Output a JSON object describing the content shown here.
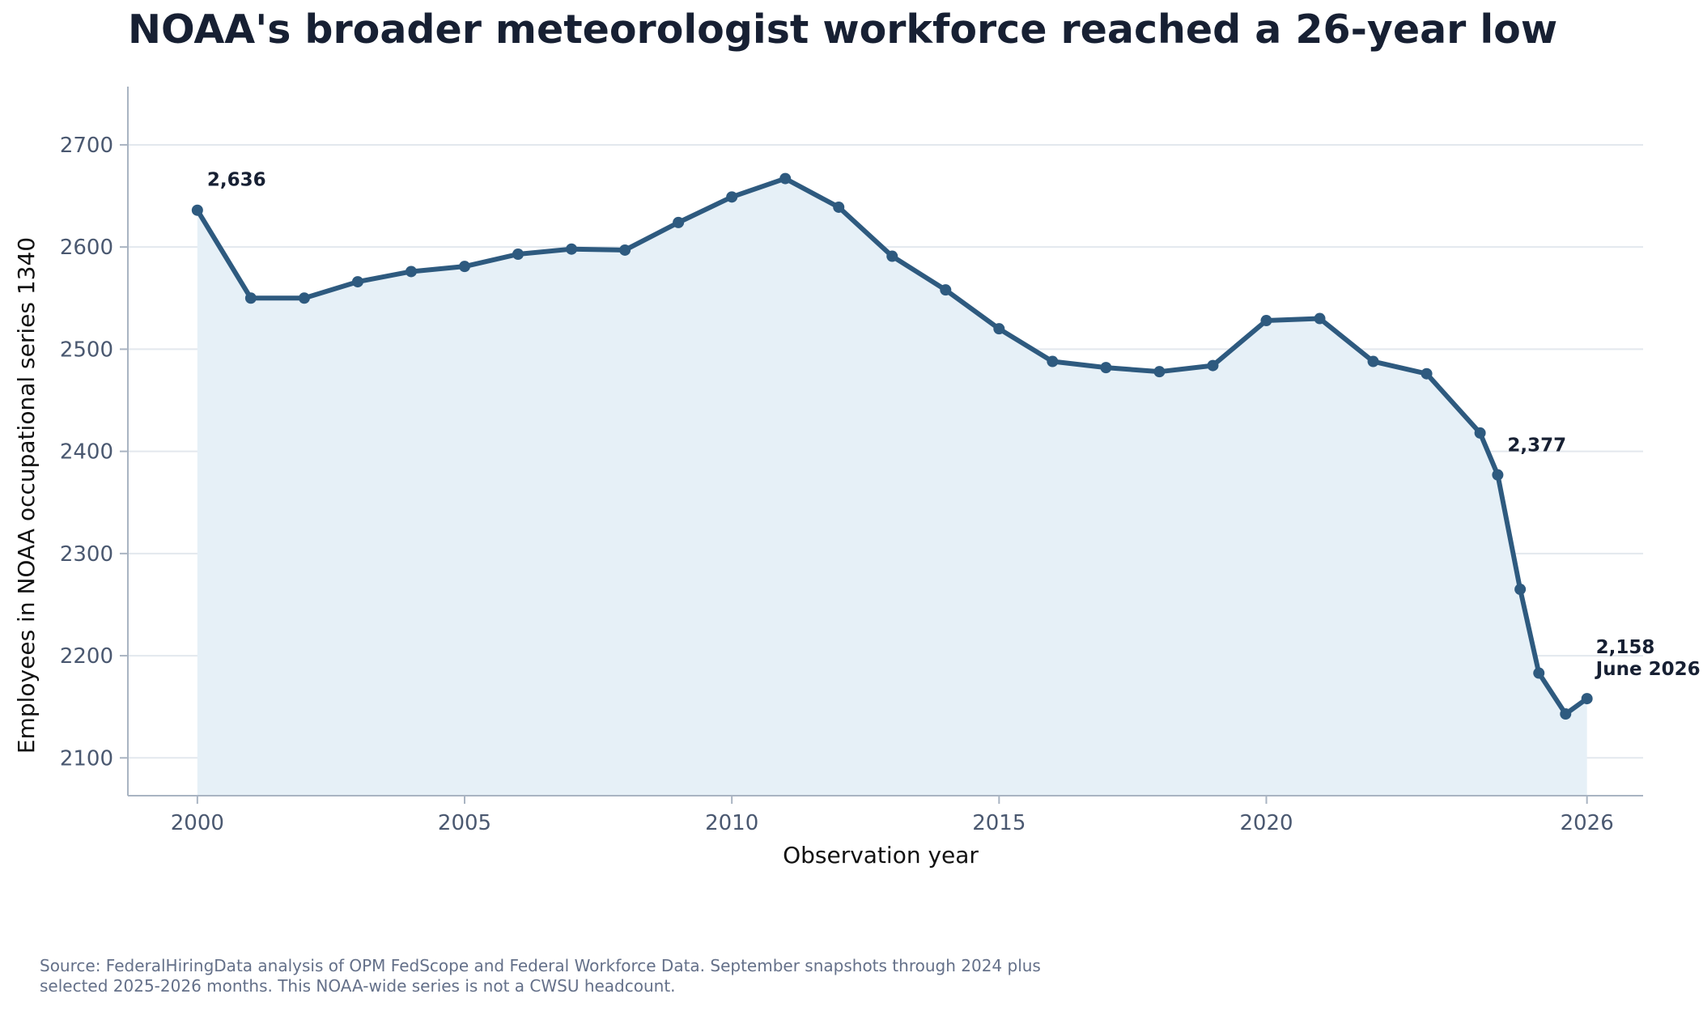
{
  "chart_data": {
    "type": "line",
    "title": "NOAA's broader meteorologist workforce reached a 26-year low",
    "xlabel": "Observation year",
    "ylabel": "Employees in NOAA occupational series 1340",
    "xlim": [
      1998.7,
      2027.05
    ],
    "ylim": [
      2063,
      2757
    ],
    "xticks": [
      2000,
      2005,
      2010,
      2015,
      2020,
      2026
    ],
    "yticks": [
      2100,
      2200,
      2300,
      2400,
      2500,
      2600,
      2700
    ],
    "grid": "horizontal",
    "line_color": "#2e5a7f",
    "fill_color": "#e6f0f7",
    "series": [
      {
        "x": [
          2000,
          2001,
          2002,
          2003,
          2004,
          2005,
          2006,
          2007,
          2008,
          2009,
          2010,
          2011,
          2012,
          2013,
          2014,
          2015,
          2016,
          2017,
          2018,
          2019,
          2020,
          2021,
          2022,
          2023,
          2024,
          2024.33,
          2024.75,
          2025.1,
          2025.6,
          2026.0
        ],
        "y": [
          2636,
          2550,
          2550,
          2566,
          2576,
          2581,
          2593,
          2598,
          2597,
          2624,
          2649,
          2667,
          2639,
          2591,
          2558,
          2520,
          2488,
          2482,
          2478,
          2484,
          2528,
          2530,
          2488,
          2476,
          2418,
          2377,
          2265,
          2183,
          2143,
          2158
        ]
      }
    ],
    "annotations": [
      {
        "x": 2000,
        "y": 2636,
        "lines": [
          "2,636"
        ]
      },
      {
        "x": 2024.33,
        "y": 2377,
        "lines": [
          "2,377"
        ]
      },
      {
        "x": 2026.0,
        "y": 2158,
        "lines": [
          "2,158",
          "June 2026"
        ]
      }
    ]
  },
  "source_note": {
    "line1": "Source: FederalHiringData analysis of OPM FedScope and Federal Workforce Data. September snapshots through 2024 plus",
    "line2": "selected 2025-2026 months. This NOAA-wide series is not a CWSU headcount."
  }
}
